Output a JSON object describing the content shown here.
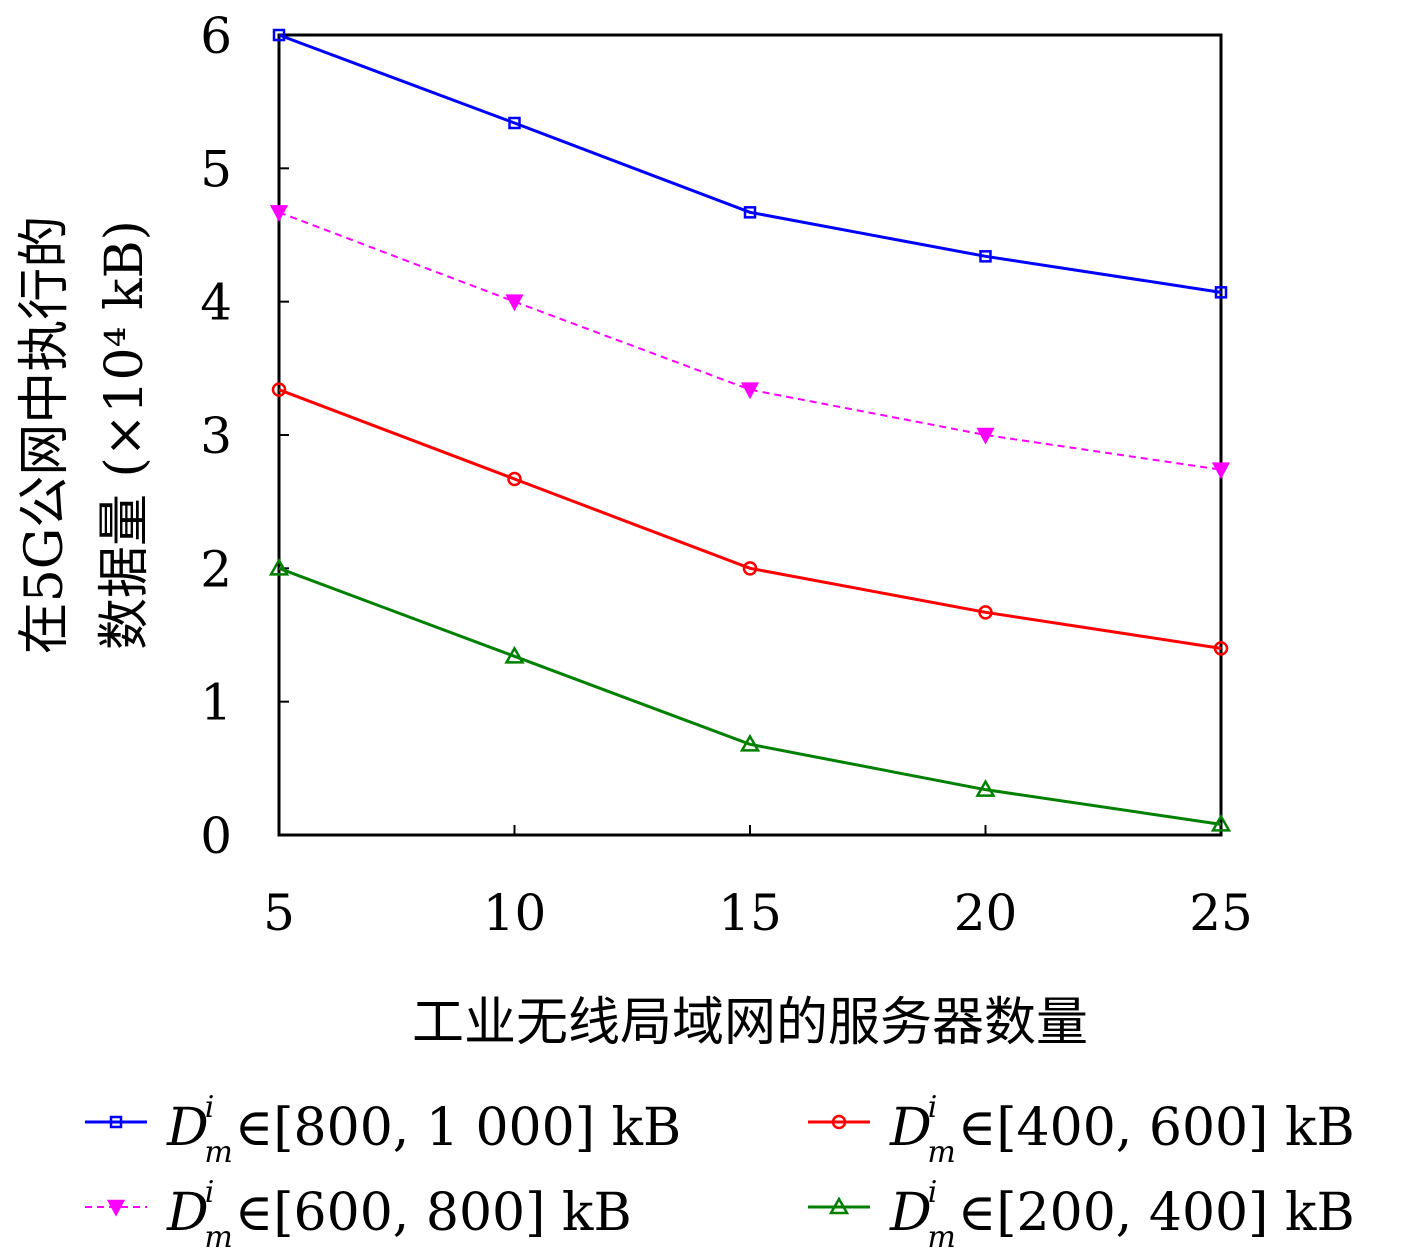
{
  "chart_data": {
    "type": "line",
    "xlabel": "工业无线局域网的服务器数量",
    "ylabel_lines": [
      "在5G公网中执行的",
      "数据量 (×10⁴ kB)"
    ],
    "x": [
      5,
      10,
      15,
      20,
      25
    ],
    "xticks": [
      "5",
      "10",
      "15",
      "20",
      "25"
    ],
    "yticks": [
      "0",
      "1",
      "2",
      "3",
      "4",
      "5",
      "6"
    ],
    "xlim": [
      5,
      25
    ],
    "ylim": [
      0,
      6
    ],
    "grid": false,
    "legend_placement": "bottom",
    "legend_symbol": {
      "base": "D",
      "sup": "i",
      "sub": "m",
      "op": "∈"
    },
    "series": [
      {
        "name": "[800, 1 000] kB",
        "color": "#0000ff",
        "marker": "square",
        "dash": false,
        "values": [
          6.0,
          5.34,
          4.67,
          4.34,
          4.07
        ]
      },
      {
        "name": "[600, 800] kB",
        "color": "#ff00ff",
        "marker": "triangle-down",
        "dash": true,
        "values": [
          4.67,
          4.0,
          3.34,
          3.0,
          2.74
        ]
      },
      {
        "name": "[400, 600] kB",
        "color": "#ff0000",
        "marker": "circle",
        "dash": false,
        "values": [
          3.34,
          2.67,
          2.0,
          1.67,
          1.4
        ]
      },
      {
        "name": "[200, 400] kB",
        "color": "#008000",
        "marker": "triangle-up",
        "dash": false,
        "values": [
          2.0,
          1.34,
          0.68,
          0.34,
          0.08
        ]
      }
    ]
  }
}
